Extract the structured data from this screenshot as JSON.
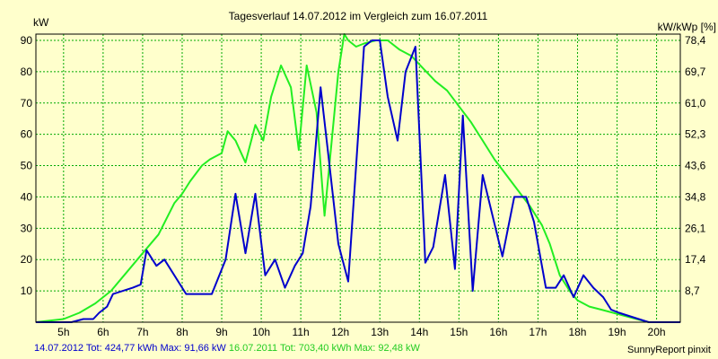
{
  "chart_data": {
    "type": "line",
    "title": "Tagesverlauf 14.07.2012 im Vergleich zum 16.07.2011",
    "ylabel_left": "kW",
    "ylabel_right": "kW/kWp [%]",
    "xlim": [
      4.3,
      20.6
    ],
    "ylim": [
      0,
      92
    ],
    "x_ticks": [
      {
        "value": 5,
        "label": "5h"
      },
      {
        "value": 6,
        "label": "6h"
      },
      {
        "value": 7,
        "label": "7h"
      },
      {
        "value": 8,
        "label": "8h"
      },
      {
        "value": 9,
        "label": "9h"
      },
      {
        "value": 10,
        "label": "10h"
      },
      {
        "value": 11,
        "label": "11h"
      },
      {
        "value": 12,
        "label": "12h"
      },
      {
        "value": 13,
        "label": "13h"
      },
      {
        "value": 14,
        "label": "14h"
      },
      {
        "value": 15,
        "label": "15h"
      },
      {
        "value": 16,
        "label": "16h"
      },
      {
        "value": 17,
        "label": "17h"
      },
      {
        "value": 18,
        "label": "18h"
      },
      {
        "value": 19,
        "label": "19h"
      },
      {
        "value": 20,
        "label": "20h"
      }
    ],
    "y_ticks_left": [
      {
        "value": 10,
        "label": "10"
      },
      {
        "value": 20,
        "label": "20"
      },
      {
        "value": 30,
        "label": "30"
      },
      {
        "value": 40,
        "label": "40"
      },
      {
        "value": 50,
        "label": "50"
      },
      {
        "value": 60,
        "label": "60"
      },
      {
        "value": 70,
        "label": "70"
      },
      {
        "value": 80,
        "label": "80"
      },
      {
        "value": 90,
        "label": "90"
      }
    ],
    "y_ticks_right": [
      {
        "value": 10,
        "label": "8,7"
      },
      {
        "value": 20,
        "label": "17,4"
      },
      {
        "value": 30,
        "label": "26,1"
      },
      {
        "value": 40,
        "label": "34,8"
      },
      {
        "value": 50,
        "label": "43,6"
      },
      {
        "value": 60,
        "label": "52,3"
      },
      {
        "value": 70,
        "label": "61,0"
      },
      {
        "value": 80,
        "label": "69,7"
      },
      {
        "value": 90,
        "label": "78,4"
      }
    ],
    "grid": true,
    "series": [
      {
        "name": "14.07.2012",
        "color": "#0000cc",
        "x": [
          4.3,
          5.2,
          5.5,
          5.75,
          5.9,
          6.1,
          6.25,
          6.75,
          6.95,
          7.1,
          7.35,
          7.55,
          8.1,
          8.55,
          8.75,
          9.1,
          9.35,
          9.6,
          9.85,
          10.1,
          10.35,
          10.6,
          10.85,
          11.05,
          11.25,
          11.5,
          11.7,
          11.95,
          12.2,
          12.4,
          12.6,
          12.8,
          13.0,
          13.2,
          13.45,
          13.65,
          13.9,
          14.15,
          14.35,
          14.65,
          14.9,
          15.1,
          15.35,
          15.6,
          15.85,
          16.1,
          16.4,
          16.7,
          16.9,
          17.2,
          17.45,
          17.65,
          17.9,
          18.15,
          18.4,
          18.65,
          18.85,
          19.05,
          19.3,
          19.55,
          19.8,
          20.0,
          20.6
        ],
        "values": [
          0,
          0,
          1,
          1,
          3,
          5,
          9,
          11,
          12,
          23,
          18,
          20,
          9,
          9,
          9,
          20,
          41,
          22,
          41,
          15,
          20,
          11,
          18,
          22,
          37,
          75,
          53,
          25,
          13,
          50,
          88,
          90,
          90,
          72,
          58,
          80,
          88,
          19,
          24,
          47,
          17,
          66,
          10,
          47,
          34,
          21,
          40,
          40,
          32,
          11,
          11,
          15,
          8,
          15,
          11,
          8,
          4,
          3,
          2,
          1,
          0,
          0,
          0
        ]
      },
      {
        "name": "16.07.2011",
        "color": "#22ee22",
        "x": [
          4.3,
          5.0,
          5.4,
          5.8,
          6.2,
          6.6,
          7.0,
          7.4,
          7.8,
          8.0,
          8.2,
          8.5,
          8.7,
          9.0,
          9.15,
          9.35,
          9.6,
          9.85,
          10.05,
          10.25,
          10.5,
          10.75,
          10.95,
          11.15,
          11.4,
          11.6,
          11.95,
          12.1,
          12.2,
          12.4,
          12.6,
          12.9,
          13.2,
          13.5,
          13.8,
          14.1,
          14.4,
          14.7,
          15.0,
          15.3,
          15.6,
          15.9,
          16.2,
          16.5,
          16.8,
          17.1,
          17.3,
          17.55,
          17.8,
          18.0,
          18.3,
          18.6,
          18.9,
          19.2,
          19.5,
          19.8,
          20.1,
          20.6
        ],
        "values": [
          0,
          1,
          3,
          6,
          10,
          16,
          22,
          28,
          38,
          41,
          45,
          50,
          52,
          54,
          61,
          58,
          51,
          63,
          58,
          72,
          82,
          75,
          55,
          82,
          67,
          34,
          80,
          92,
          90,
          88,
          89,
          90,
          90,
          87,
          85,
          81,
          77,
          74,
          69,
          64,
          58,
          52,
          47,
          42,
          37,
          31,
          25,
          15,
          10,
          7,
          5,
          4,
          3,
          2,
          1,
          0,
          0,
          0
        ]
      }
    ]
  },
  "footer": {
    "s1_label": "14.07.2012 Tot: 424,77 kWh Max: 91,66 kW",
    "s2_label": "16.07.2011 Tot: 703,40 kWh Max: 92,48 kW",
    "credit": "SunnyReport pinxit"
  },
  "colors": {
    "background": "#ffffcc",
    "grid": "#00aa00",
    "series1": "#0000cc",
    "series2": "#22ee22"
  }
}
